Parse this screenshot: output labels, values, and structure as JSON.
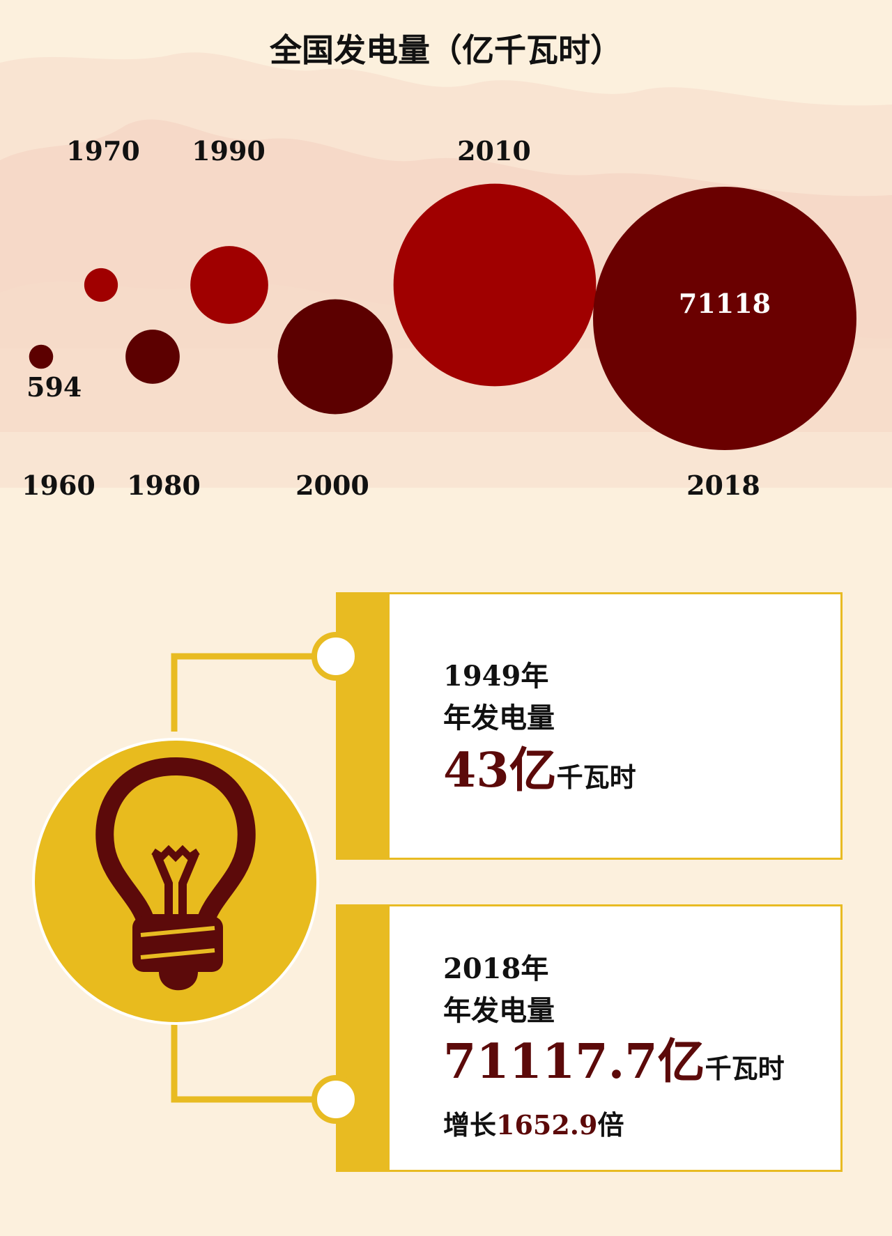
{
  "title": "全国发电量（亿千瓦时）",
  "chart_data": {
    "type": "bubble",
    "title": "全国发电量（亿千瓦时）",
    "unit": "亿千瓦时",
    "categories": [
      "1960",
      "1970",
      "1980",
      "1990",
      "2000",
      "2010",
      "2018"
    ],
    "values": [
      594,
      1159,
      3006,
      6212,
      13556,
      42072,
      71118
    ],
    "value_labels": [
      {
        "category": "1960",
        "label": "594"
      },
      {
        "category": "2018",
        "label": "71118"
      }
    ],
    "colors": [
      "#5c0000",
      "#a00000",
      "#5c0000",
      "#a00000",
      "#5c0000",
      "#a00000",
      "#6a0000"
    ]
  },
  "cards": [
    {
      "year_label": "1949年",
      "subtitle": "年发电量",
      "value": "43亿",
      "unit": "千瓦时",
      "growth_prefix": "",
      "growth_value": "",
      "growth_suffix": ""
    },
    {
      "year_label": "2018年",
      "subtitle": "年发电量",
      "value": "71117.7亿",
      "unit": "千瓦时",
      "growth_prefix": "增长",
      "growth_value": "1652.9",
      "growth_suffix": "倍"
    }
  ],
  "icon": "lightbulb-icon",
  "colors": {
    "accent": "#e8bb22",
    "dark_red": "#5c0a0a",
    "red": "#a00000",
    "background": "#fcf0dd"
  }
}
